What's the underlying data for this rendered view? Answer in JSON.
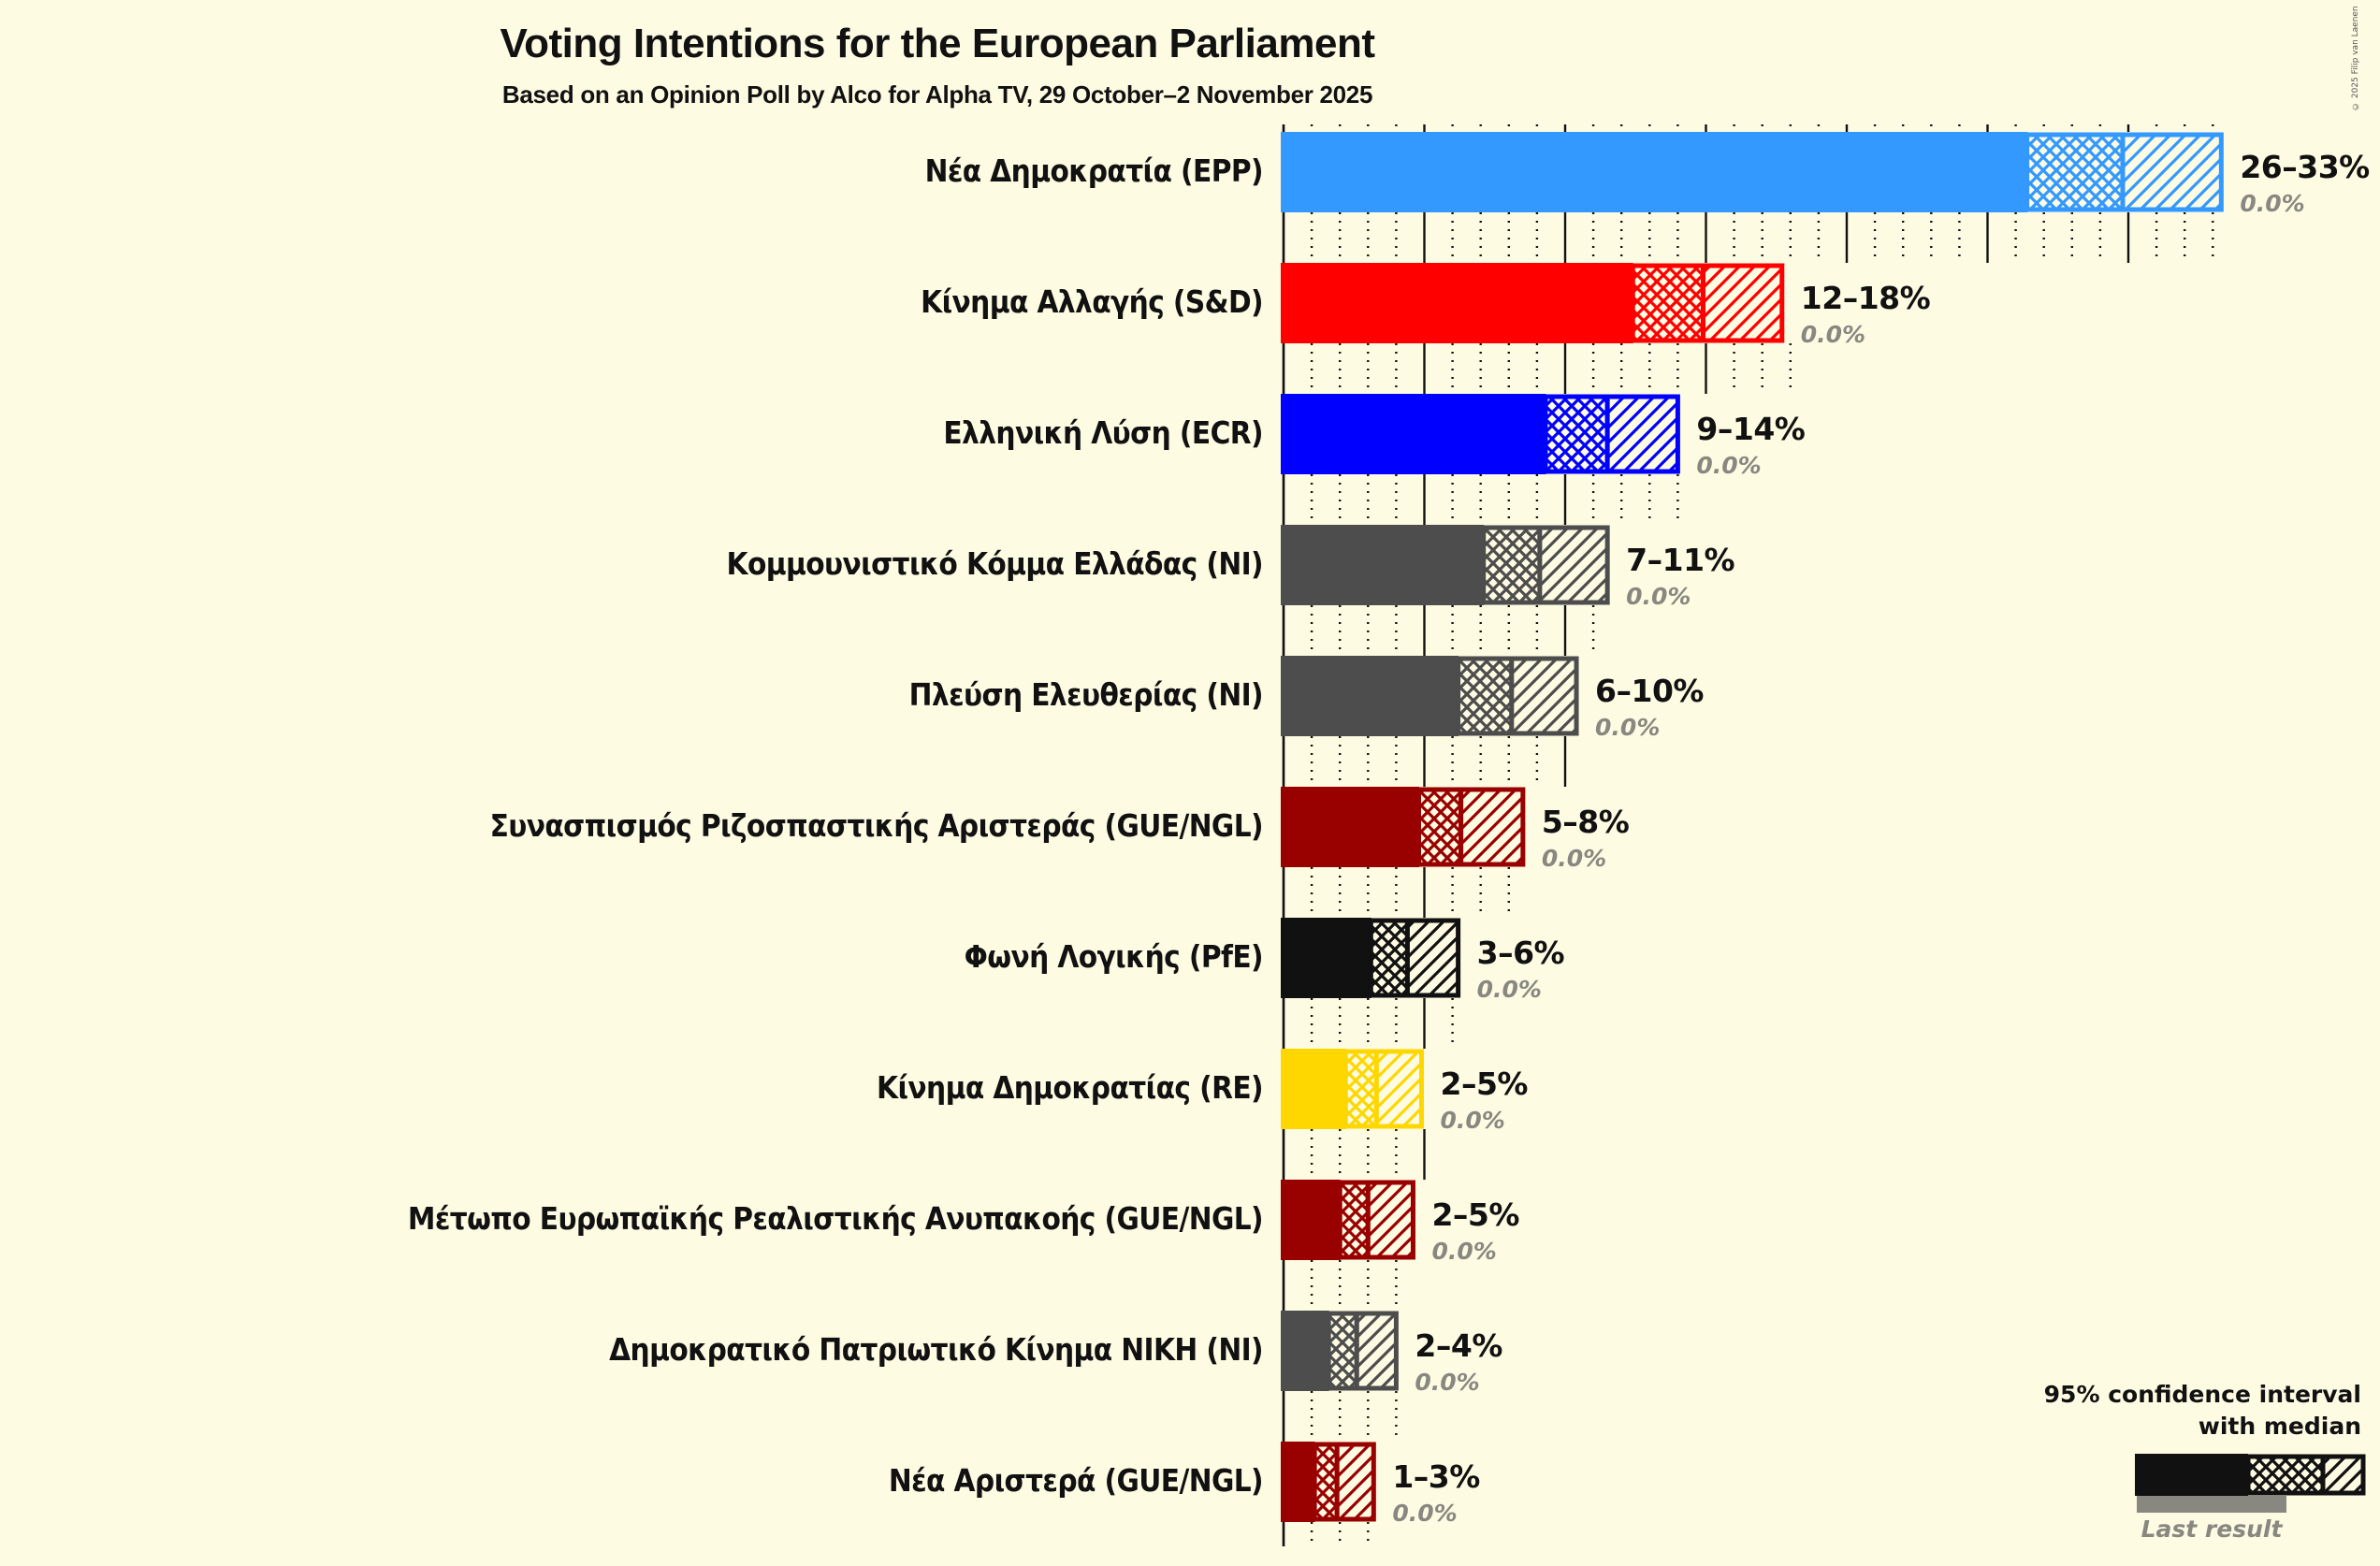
{
  "header": {
    "title": "Voting Intentions for the European Parliament",
    "subtitle": "Based on an Opinion Poll by Alco for Alpha TV, 29 October–2 November 2025",
    "copyright": "© 2025 Filip van Laenen"
  },
  "legend": {
    "title_line1": "95% confidence interval",
    "title_line2": "with median",
    "last_result": "Last result"
  },
  "colors": {
    "background": "#FEFBE3",
    "gridline": "#111111",
    "last_result": "#888880"
  },
  "chart_data": {
    "type": "bar",
    "orientation": "horizontal",
    "title": "Voting Intentions for the European Parliament",
    "subtitle": "Based on an Opinion Poll by Alco for Alpha TV, 29 October–2 November 2025",
    "xlabel": "",
    "ylabel": "",
    "xlim": [
      0,
      34
    ],
    "grid": {
      "major_every": 5,
      "minor_every": 1
    },
    "legend_position": "bottom-right",
    "series": [
      {
        "party": "Νέα Δημοκρατία (EPP)",
        "color": "#3399FF",
        "ci_low": 26.4,
        "median": 29.8,
        "ci_high": 33.3,
        "range_label": "26–33%",
        "last_result": 0.0,
        "last_label": "0.0%"
      },
      {
        "party": "Κίνημα Αλλαγής (S&D)",
        "color": "#FF0000",
        "ci_low": 12.4,
        "median": 14.9,
        "ci_high": 17.7,
        "range_label": "12–18%",
        "last_result": 0.0,
        "last_label": "0.0%"
      },
      {
        "party": "Ελληνική Λύση (ECR)",
        "color": "#0000FF",
        "ci_low": 9.3,
        "median": 11.5,
        "ci_high": 14.0,
        "range_label": "9–14%",
        "last_result": 0.0,
        "last_label": "0.0%"
      },
      {
        "party": "Κομμουνιστικό Κόμμα Ελλάδας (NI)",
        "color": "#4D4D4D",
        "ci_low": 7.1,
        "median": 9.1,
        "ci_high": 11.5,
        "range_label": "7–11%",
        "last_result": 0.0,
        "last_label": "0.0%"
      },
      {
        "party": "Πλεύση Ελευθερίας (NI)",
        "color": "#4D4D4D",
        "ci_low": 6.2,
        "median": 8.1,
        "ci_high": 10.4,
        "range_label": "6–10%",
        "last_result": 0.0,
        "last_label": "0.0%"
      },
      {
        "party": "Συνασπισμός Ριζοσπαστικής Αριστεράς (GUE/NGL)",
        "color": "#990000",
        "ci_low": 4.8,
        "median": 6.3,
        "ci_high": 8.5,
        "range_label": "5–8%",
        "last_result": 0.0,
        "last_label": "0.0%"
      },
      {
        "party": "Φωνή Λογικής (PfE)",
        "color": "#111111",
        "ci_low": 3.1,
        "median": 4.4,
        "ci_high": 6.2,
        "range_label": "3–6%",
        "last_result": 0.0,
        "last_label": "0.0%"
      },
      {
        "party": "Κίνημα Δημοκρατίας (RE)",
        "color": "#FFD700",
        "ci_low": 2.2,
        "median": 3.3,
        "ci_high": 4.9,
        "range_label": "2–5%",
        "last_result": 0.0,
        "last_label": "0.0%"
      },
      {
        "party": "Μέτωπο Ευρωπαϊκής Ρεαλιστικής Ανυπακοής (GUE/NGL)",
        "color": "#990000",
        "ci_low": 2.0,
        "median": 3.0,
        "ci_high": 4.6,
        "range_label": "2–5%",
        "last_result": 0.0,
        "last_label": "0.0%"
      },
      {
        "party": "Δημοκρατικό Πατριωτικό Κίνημα ΝΙΚΗ (NI)",
        "color": "#4D4D4D",
        "ci_low": 1.6,
        "median": 2.6,
        "ci_high": 4.0,
        "range_label": "2–4%",
        "last_result": 0.0,
        "last_label": "0.0%"
      },
      {
        "party": "Νέα Αριστερά (GUE/NGL)",
        "color": "#990000",
        "ci_low": 1.1,
        "median": 1.9,
        "ci_high": 3.2,
        "range_label": "1–3%",
        "last_result": 0.0,
        "last_label": "0.0%"
      }
    ]
  }
}
